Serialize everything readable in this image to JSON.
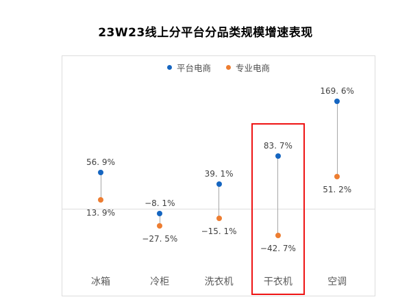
{
  "title": "23W23线上分平台分品类规模增速表现",
  "legend": [
    {
      "label": "平台电商",
      "color": "#1565c0",
      "icon": "circle-dot-icon"
    },
    {
      "label": "专业电商",
      "color": "#ed7d31",
      "icon": "circle-dot-icon"
    }
  ],
  "chart_data": {
    "type": "dumbbell",
    "title": "23W23线上分平台分品类规模增速表现",
    "categories": [
      "冰箱",
      "冷柜",
      "洗衣机",
      "干衣机",
      "空调"
    ],
    "series": [
      {
        "name": "平台电商",
        "color": "#1565c0",
        "values": [
          56.9,
          -8.1,
          39.1,
          83.7,
          169.6
        ],
        "labels": [
          "56. 9%",
          "−8. 1%",
          "39. 1%",
          "83. 7%",
          "169. 6%"
        ]
      },
      {
        "name": "专业电商",
        "color": "#ed7d31",
        "values": [
          13.9,
          -27.5,
          -15.1,
          -42.7,
          51.2
        ],
        "labels": [
          "13. 9%",
          "−27. 5%",
          "−15. 1%",
          "−42. 7%",
          "51. 2%"
        ]
      }
    ],
    "unit": "%",
    "value_labels_shown": true,
    "zero_line": true,
    "grid": "zero-line-only",
    "legend_position": "top-center",
    "ylim": [
      -60,
      200
    ],
    "xlabel": "",
    "ylabel": "",
    "highlighted_category": "干衣机"
  },
  "colors": {
    "platform_blue": "#1565c0",
    "specialist_orange": "#ed7d31",
    "connector_gray": "#a6a6a6",
    "border_gray": "#dcdcdc",
    "value_label_dark": "#404040",
    "category_label_gray": "#595959",
    "highlight_red": "#ee1111",
    "background": "#ffffff"
  }
}
